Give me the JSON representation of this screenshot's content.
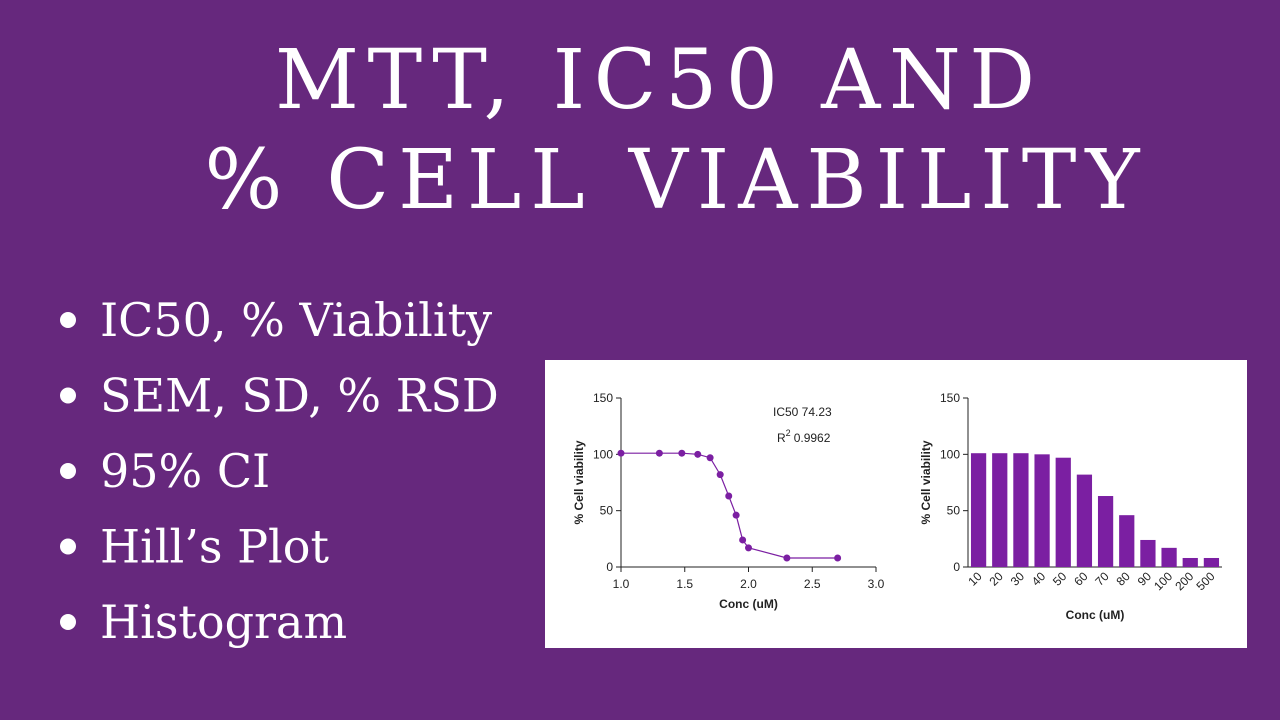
{
  "title_lines": [
    "MTT, IC50 AND",
    "% CELL VIABILITY"
  ],
  "bullets": [
    "IC50, % Viability",
    "SEM, SD, % RSD",
    "95% CI",
    "Hill’s Plot",
    "Histogram"
  ],
  "chart_data": [
    {
      "type": "line",
      "x": [
        1.0,
        1.301,
        1.477,
        1.602,
        1.699,
        1.778,
        1.845,
        1.903,
        1.954,
        2.0,
        2.301,
        2.699
      ],
      "values": [
        101,
        101,
        101,
        100,
        97,
        82,
        63,
        46,
        24,
        17,
        8,
        8
      ],
      "color": "#7b1fa2",
      "xlabel": "Conc (uM)",
      "ylabel": "% Cell viability",
      "xlim": [
        1.0,
        3.0
      ],
      "xticks": [
        {
          "value": 1.0,
          "label": "1.0"
        },
        {
          "value": 1.5,
          "label": "1.5"
        },
        {
          "value": 2.0,
          "label": "2.0"
        },
        {
          "value": 2.5,
          "label": "2.5"
        },
        {
          "value": 3.0,
          "label": "3.0"
        }
      ],
      "ylim": [
        0,
        150
      ],
      "yticks": [
        0,
        50,
        100,
        150
      ],
      "annotations": {
        "ic50": "IC50 74.23",
        "r2_symbol": "R",
        "r2_exponent": "2",
        "r2_value": "0.9962"
      }
    },
    {
      "type": "bar",
      "categories": [
        "10",
        "20",
        "30",
        "40",
        "50",
        "60",
        "70",
        "80",
        "90",
        "100",
        "200",
        "500"
      ],
      "values": [
        101,
        101,
        101,
        100,
        97,
        82,
        63,
        46,
        24,
        17,
        8,
        8
      ],
      "color": "#7b1fa2",
      "xlabel": "Conc (uM)",
      "ylabel": "% Cell viability",
      "ylim": [
        0,
        150
      ],
      "yticks": [
        0,
        50,
        100,
        150
      ]
    }
  ]
}
